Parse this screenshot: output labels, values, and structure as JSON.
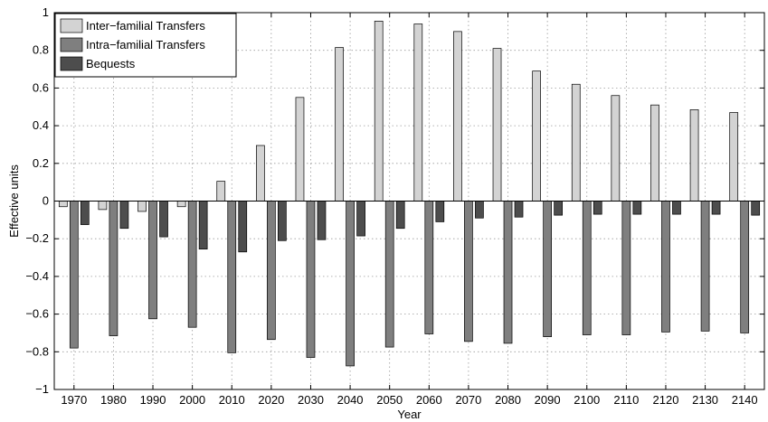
{
  "chart_data": {
    "type": "bar",
    "xlabel": "Year",
    "ylabel": "Effective units",
    "ylim": [
      -1,
      1
    ],
    "yticks": [
      -1,
      -0.8,
      -0.6,
      -0.4,
      -0.2,
      0,
      0.2,
      0.4,
      0.6,
      0.8,
      1
    ],
    "ytick_labels": [
      "−1",
      "−0.8",
      "−0.6",
      "−0.4",
      "−0.2",
      "0",
      "0.2",
      "0.4",
      "0.6",
      "0.8",
      "1"
    ],
    "grid": true,
    "legend_position": "top-left",
    "categories": [
      "1970",
      "1980",
      "1990",
      "2000",
      "2010",
      "2020",
      "2030",
      "2040",
      "2050",
      "2060",
      "2070",
      "2080",
      "2090",
      "2100",
      "2110",
      "2120",
      "2130",
      "2140"
    ],
    "series": [
      {
        "name": "Inter−familial Transfers",
        "color": "#d3d3d3",
        "values": [
          -0.03,
          -0.045,
          -0.055,
          -0.03,
          0.105,
          0.295,
          0.55,
          0.815,
          0.955,
          0.94,
          0.9,
          0.81,
          0.69,
          0.62,
          0.56,
          0.51,
          0.485,
          0.47
        ]
      },
      {
        "name": "Intra−familial Transfers",
        "color": "#7f7f7f",
        "values": [
          -0.78,
          -0.715,
          -0.625,
          -0.67,
          -0.805,
          -0.735,
          -0.83,
          -0.875,
          -0.775,
          -0.705,
          -0.745,
          -0.755,
          -0.72,
          -0.71,
          -0.71,
          -0.695,
          -0.69,
          -0.7
        ]
      },
      {
        "name": "Bequests",
        "color": "#4d4d4d",
        "values": [
          -0.125,
          -0.145,
          -0.19,
          -0.255,
          -0.27,
          -0.21,
          -0.205,
          -0.185,
          -0.145,
          -0.11,
          -0.09,
          -0.085,
          -0.075,
          -0.07,
          -0.07,
          -0.07,
          -0.07,
          -0.075
        ]
      }
    ]
  }
}
